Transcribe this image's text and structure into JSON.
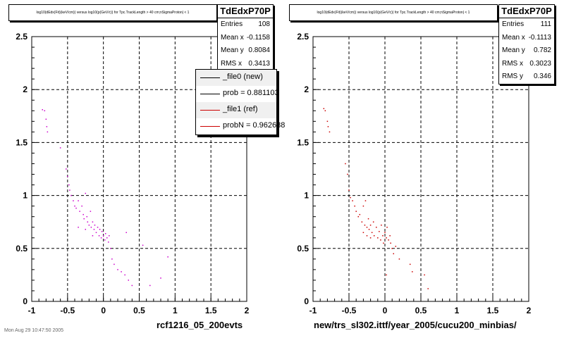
{
  "left": {
    "title": "log10(dEdx(Fit)(keV/cm)) versus log10(p(GeV/c)) for Tpc.TrackLength > 40 cm;nSigmaProton| < 1",
    "stats": {
      "name": "TdEdxP70P",
      "rows": [
        {
          "label": "Entries",
          "value": "108"
        },
        {
          "label": "Mean x",
          "value": "-0.1158"
        },
        {
          "label": "Mean y",
          "value": "0.8084"
        },
        {
          "label": "RMS x",
          "value": "0.3413"
        }
      ]
    },
    "legend": [
      {
        "label": "_file0 (new)",
        "color": "#000000"
      },
      {
        "label": "prob = 0.881103",
        "color": "#000000"
      },
      {
        "label": "_file1 (ref)",
        "color": "#cc0000"
      },
      {
        "label": "probN = 0.962688",
        "color": "#cc0000"
      }
    ],
    "xlabel": "rcf1216_05_200evts"
  },
  "right": {
    "title": "log10(dEdx(Fit)(keV/cm)) versus log10(p(GeV/c)) for Tpc.TrackLength > 40 cm;nSigmaProton| < 1",
    "stats": {
      "name": "TdEdxP70P",
      "rows": [
        {
          "label": "Entries",
          "value": "111"
        },
        {
          "label": "Mean x",
          "value": "-0.1113"
        },
        {
          "label": "Mean y",
          "value": "0.782"
        },
        {
          "label": "RMS x",
          "value": "0.3023"
        },
        {
          "label": "RMS y",
          "value": "0.346"
        }
      ]
    },
    "xlabel": "new/trs_sl302.ittf/year_2005/cucu200_minbias/"
  },
  "footer": "Mon Aug 29 10:47:50 2005",
  "chart_data": [
    {
      "type": "scatter",
      "xlim": [
        -1,
        2
      ],
      "ylim": [
        0,
        2.5
      ],
      "xticks": [
        "-1",
        "-0.5",
        "0",
        "0.5",
        "1",
        "1.5",
        "2"
      ],
      "yticks": [
        "0",
        "0.5",
        "1",
        "1.5",
        "2",
        "2.5"
      ],
      "grid": true,
      "series": [
        {
          "color": "#cc00cc",
          "points": [
            [
              -0.85,
              1.81
            ],
            [
              -0.82,
              1.8
            ],
            [
              -0.8,
              1.72
            ],
            [
              -0.79,
              1.65
            ],
            [
              -0.78,
              1.6
            ],
            [
              -0.6,
              1.45
            ],
            [
              -0.52,
              1.25
            ],
            [
              -0.5,
              1.18
            ],
            [
              -0.48,
              1.1
            ],
            [
              -0.47,
              1.05
            ],
            [
              -0.45,
              1.0
            ],
            [
              -0.42,
              0.95
            ],
            [
              -0.4,
              0.9
            ],
            [
              -0.38,
              0.88
            ],
            [
              -0.35,
              0.95
            ],
            [
              -0.33,
              0.85
            ],
            [
              -0.3,
              0.9
            ],
            [
              -0.28,
              0.82
            ],
            [
              -0.27,
              0.78
            ],
            [
              -0.25,
              1.02
            ],
            [
              -0.23,
              0.8
            ],
            [
              -0.22,
              0.75
            ],
            [
              -0.2,
              0.72
            ],
            [
              -0.18,
              0.85
            ],
            [
              -0.17,
              0.7
            ],
            [
              -0.15,
              0.75
            ],
            [
              -0.13,
              0.68
            ],
            [
              -0.12,
              0.72
            ],
            [
              -0.1,
              0.65
            ],
            [
              -0.08,
              0.7
            ],
            [
              -0.06,
              0.62
            ],
            [
              -0.05,
              0.68
            ],
            [
              -0.03,
              0.6
            ],
            [
              -0.02,
              0.66
            ],
            [
              0.0,
              0.62
            ],
            [
              0.02,
              0.58
            ],
            [
              0.03,
              0.64
            ],
            [
              0.05,
              0.6
            ],
            [
              0.07,
              0.56
            ],
            [
              0.08,
              0.62
            ],
            [
              0.1,
              0.5
            ],
            [
              0.12,
              0.4
            ],
            [
              0.15,
              0.35
            ],
            [
              0.2,
              0.3
            ],
            [
              0.25,
              0.28
            ],
            [
              0.3,
              0.25
            ],
            [
              0.35,
              0.2
            ],
            [
              0.4,
              0.15
            ],
            [
              0.55,
              0.53
            ],
            [
              0.65,
              0.15
            ],
            [
              0.8,
              0.22
            ],
            [
              0.9,
              0.42
            ],
            [
              -0.25,
              0.68
            ],
            [
              -0.35,
              0.7
            ],
            [
              -0.15,
              0.62
            ],
            [
              0.32,
              0.65
            ]
          ]
        }
      ]
    },
    {
      "type": "scatter",
      "xlim": [
        -1,
        2
      ],
      "ylim": [
        0,
        2.5
      ],
      "xticks": [
        "-1",
        "-0.5",
        "0",
        "0.5",
        "1",
        "1.5",
        "2"
      ],
      "yticks": [
        "0",
        "0.5",
        "1",
        "1.5",
        "2",
        "2.5"
      ],
      "grid": true,
      "series": [
        {
          "color": "#cc0000",
          "points": [
            [
              -0.85,
              1.82
            ],
            [
              -0.83,
              1.8
            ],
            [
              -0.8,
              1.7
            ],
            [
              -0.79,
              1.65
            ],
            [
              -0.77,
              1.6
            ],
            [
              -0.55,
              1.3
            ],
            [
              -0.52,
              1.2
            ],
            [
              -0.5,
              1.05
            ],
            [
              -0.48,
              0.98
            ],
            [
              -0.45,
              0.95
            ],
            [
              -0.42,
              0.9
            ],
            [
              -0.4,
              0.85
            ],
            [
              -0.37,
              0.8
            ],
            [
              -0.35,
              0.82
            ],
            [
              -0.32,
              0.75
            ],
            [
              -0.3,
              0.9
            ],
            [
              -0.28,
              0.72
            ],
            [
              -0.27,
              0.95
            ],
            [
              -0.25,
              0.7
            ],
            [
              -0.23,
              0.78
            ],
            [
              -0.22,
              0.68
            ],
            [
              -0.2,
              0.72
            ],
            [
              -0.18,
              0.65
            ],
            [
              -0.16,
              0.75
            ],
            [
              -0.15,
              0.62
            ],
            [
              -0.12,
              0.7
            ],
            [
              -0.1,
              0.6
            ],
            [
              -0.08,
              0.66
            ],
            [
              -0.06,
              0.58
            ],
            [
              -0.05,
              0.72
            ],
            [
              -0.03,
              0.62
            ],
            [
              -0.02,
              0.55
            ],
            [
              0.0,
              0.65
            ],
            [
              0.02,
              0.6
            ],
            [
              0.03,
              0.7
            ],
            [
              0.05,
              0.58
            ],
            [
              0.07,
              0.62
            ],
            [
              0.08,
              0.55
            ],
            [
              0.1,
              0.5
            ],
            [
              0.12,
              0.45
            ],
            [
              0.15,
              0.52
            ],
            [
              0.2,
              0.4
            ],
            [
              0.35,
              0.35
            ],
            [
              0.38,
              0.28
            ],
            [
              0.55,
              0.25
            ],
            [
              0.6,
              0.12
            ],
            [
              0.02,
              0.25
            ],
            [
              -0.2,
              0.6
            ],
            [
              -0.25,
              0.62
            ],
            [
              -0.3,
              0.65
            ]
          ]
        }
      ]
    }
  ]
}
